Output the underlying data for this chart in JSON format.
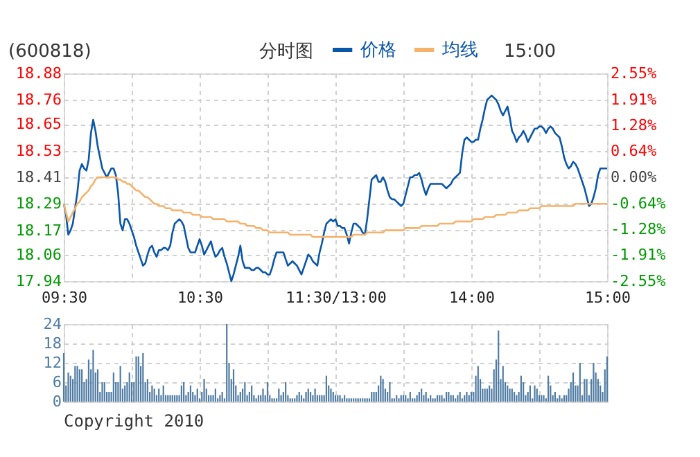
{
  "chart_data": [
    {
      "type": "line",
      "title": "(600818)",
      "subtitle": "分时图",
      "annotations": [
        "15:00"
      ],
      "legend": "top",
      "grid": true,
      "marker": "none",
      "categories": [
        "09:30",
        null,
        null,
        null,
        null,
        null,
        null,
        null,
        null,
        null,
        null,
        null,
        null,
        null,
        null,
        null,
        null,
        null,
        null,
        null,
        null,
        null,
        null,
        null,
        null,
        null,
        null,
        null,
        null,
        null,
        null,
        null,
        null,
        null,
        null,
        null,
        null,
        null,
        null,
        null,
        null,
        null,
        null,
        null,
        null,
        null,
        null,
        null,
        null,
        null,
        null,
        null,
        null,
        null,
        null,
        null,
        null,
        null,
        null,
        null,
        "10:30",
        null,
        null,
        null,
        null,
        null,
        null,
        null,
        null,
        null,
        null,
        null,
        null,
        null,
        null,
        null,
        null,
        null,
        null,
        null,
        null,
        null,
        null,
        null,
        null,
        null,
        null,
        null,
        null,
        null,
        null,
        null,
        null,
        null,
        null,
        null,
        null,
        null,
        null,
        null,
        null,
        null,
        null,
        null,
        null,
        null,
        null,
        null,
        null,
        null,
        null,
        null,
        null,
        null,
        null,
        null,
        null,
        null,
        null,
        null,
        "11:30/13:00",
        null,
        null,
        null,
        null,
        null,
        null,
        null,
        null,
        null,
        null,
        null,
        null,
        null,
        null,
        null,
        null,
        null,
        null,
        null,
        null,
        null,
        null,
        null,
        null,
        null,
        null,
        null,
        null,
        null,
        null,
        null,
        null,
        null,
        null,
        null,
        null,
        null,
        null,
        null,
        null,
        null,
        null,
        null,
        null,
        null,
        null,
        null,
        null,
        null,
        null,
        null,
        null,
        null,
        null,
        null,
        null,
        null,
        null,
        null,
        "14:00",
        null,
        null,
        null,
        null,
        null,
        null,
        null,
        null,
        null,
        null,
        null,
        null,
        null,
        null,
        null,
        null,
        null,
        null,
        null,
        null,
        null,
        null,
        null,
        null,
        null,
        null,
        null,
        null,
        null,
        null,
        null,
        null,
        null,
        null,
        null,
        null,
        null,
        null,
        null,
        null,
        null,
        null,
        null,
        null,
        null,
        null,
        null,
        null,
        null,
        null,
        null,
        null,
        null,
        null,
        null,
        null,
        null,
        null,
        null,
        "15:00"
      ],
      "ylim": [
        17.94,
        18.88
      ],
      "yticks": [
        17.94,
        18.06,
        18.17,
        18.29,
        18.41,
        18.53,
        18.65,
        18.76,
        18.88
      ],
      "y2lim": [
        -2.55,
        2.55
      ],
      "y2ticks": [
        {
          "value": -2.55,
          "label": "-2.55%"
        },
        {
          "value": -1.91,
          "label": "-1.91%"
        },
        {
          "value": -1.28,
          "label": "-1.28%"
        },
        {
          "value": -0.64,
          "label": "-0.64%"
        },
        {
          "value": 0,
          "label": "0.00%"
        },
        {
          "value": 0.64,
          "label": "0.64%"
        },
        {
          "value": 1.28,
          "label": "1.28%"
        },
        {
          "value": 1.91,
          "label": "1.91%"
        },
        {
          "value": 2.55,
          "label": "2.55%"
        }
      ],
      "series": [
        {
          "name": "价格",
          "color": "#0a56a8",
          "values": [
            18.29,
            18.24,
            18.15,
            18.17,
            18.2,
            18.27,
            18.34,
            18.44,
            18.47,
            18.45,
            18.44,
            18.49,
            18.61,
            18.67,
            18.62,
            18.55,
            18.5,
            18.45,
            18.43,
            18.41,
            18.43,
            18.45,
            18.45,
            18.42,
            18.34,
            18.2,
            18.17,
            18.22,
            18.22,
            18.2,
            18.17,
            18.14,
            18.1,
            18.07,
            18.04,
            18.01,
            18.02,
            18.06,
            18.09,
            18.1,
            18.07,
            18.05,
            18.08,
            18.08,
            18.09,
            18.09,
            18.08,
            18.1,
            18.16,
            18.2,
            18.21,
            18.22,
            18.21,
            18.19,
            18.14,
            18.09,
            18.07,
            18.07,
            18.07,
            18.1,
            18.13,
            18.1,
            18.06,
            18.08,
            18.1,
            18.12,
            18.08,
            18.05,
            18.06,
            18.08,
            18.09,
            18.05,
            18.02,
            17.98,
            17.94,
            17.97,
            18.01,
            18.05,
            18.1,
            18.03,
            18.0,
            18.0,
            18.0,
            17.99,
            17.99,
            18.0,
            18.0,
            17.99,
            17.98,
            17.98,
            17.97,
            17.97,
            18.0,
            18.04,
            18.07,
            18.07,
            18.07,
            18.07,
            18.04,
            18.01,
            18.02,
            18.03,
            18.02,
            18.01,
            17.99,
            17.97,
            18.0,
            18.03,
            18.06,
            18.05,
            18.03,
            18.02,
            18.01,
            18.07,
            18.11,
            18.16,
            18.2,
            18.21,
            18.22,
            18.21,
            18.22,
            18.19,
            18.19,
            18.18,
            18.18,
            18.15,
            18.11,
            18.16,
            18.2,
            18.2,
            18.19,
            18.18,
            18.16,
            18.15,
            18.22,
            18.31,
            18.4,
            18.41,
            18.42,
            18.39,
            18.39,
            18.41,
            18.39,
            18.35,
            18.32,
            18.31,
            18.31,
            18.3,
            18.29,
            18.28,
            18.29,
            18.33,
            18.37,
            18.41,
            18.41,
            18.42,
            18.42,
            18.43,
            18.4,
            18.36,
            18.33,
            18.36,
            18.38,
            18.38,
            18.38,
            18.38,
            18.38,
            18.38,
            18.37,
            18.36,
            18.37,
            18.38,
            18.4,
            18.41,
            18.42,
            18.43,
            18.52,
            18.58,
            18.59,
            18.58,
            18.57,
            18.57,
            18.58,
            18.58,
            18.63,
            18.67,
            18.72,
            18.76,
            18.77,
            18.78,
            18.77,
            18.76,
            18.74,
            18.71,
            18.69,
            18.71,
            18.73,
            18.68,
            18.62,
            18.6,
            18.57,
            18.59,
            18.6,
            18.62,
            18.6,
            18.57,
            18.59,
            18.61,
            18.63,
            18.63,
            18.64,
            18.64,
            18.63,
            18.61,
            18.63,
            18.64,
            18.63,
            18.61,
            18.6,
            18.59,
            18.55,
            18.5,
            18.47,
            18.45,
            18.46,
            18.48,
            18.47,
            18.45,
            18.42,
            18.39,
            18.36,
            18.32,
            18.28,
            18.29,
            18.32,
            18.36,
            18.42,
            18.45,
            18.45,
            18.45,
            18.45
          ]
        },
        {
          "name": "均线",
          "color": "#f5b26b",
          "values": [
            18.29,
            18.25,
            18.21,
            18.23,
            18.25,
            18.27,
            18.29,
            18.3,
            18.32,
            18.33,
            18.34,
            18.35,
            18.37,
            18.38,
            18.4,
            18.41,
            18.41,
            18.41,
            18.41,
            18.41,
            18.41,
            18.41,
            18.41,
            18.41,
            18.4,
            18.4,
            18.39,
            18.39,
            18.38,
            18.38,
            18.37,
            18.36,
            18.35,
            18.35,
            18.34,
            18.33,
            18.32,
            18.32,
            18.31,
            18.3,
            18.29,
            18.29,
            18.28,
            18.28,
            18.28,
            18.27,
            18.27,
            18.27,
            18.26,
            18.26,
            18.26,
            18.26,
            18.26,
            18.25,
            18.25,
            18.25,
            18.25,
            18.24,
            18.24,
            18.24,
            18.24,
            18.23,
            18.23,
            18.23,
            18.23,
            18.23,
            18.22,
            18.22,
            18.22,
            18.22,
            18.22,
            18.22,
            18.21,
            18.21,
            18.21,
            18.21,
            18.21,
            18.21,
            18.2,
            18.2,
            18.2,
            18.19,
            18.19,
            18.19,
            18.19,
            18.18,
            18.18,
            18.18,
            18.17,
            18.17,
            18.17,
            18.16,
            18.16,
            18.16,
            18.16,
            18.16,
            18.16,
            18.16,
            18.16,
            18.16,
            18.15,
            18.15,
            18.15,
            18.15,
            18.15,
            18.15,
            18.15,
            18.15,
            18.15,
            18.15,
            18.14,
            18.14,
            18.14,
            18.14,
            18.14,
            18.14,
            18.14,
            18.14,
            18.14,
            18.14,
            18.14,
            18.14,
            18.14,
            18.14,
            18.14,
            18.14,
            18.14,
            18.14,
            18.15,
            18.15,
            18.15,
            18.15,
            18.15,
            18.15,
            18.16,
            18.16,
            18.16,
            18.16,
            18.16,
            18.16,
            18.16,
            18.16,
            18.17,
            18.17,
            18.17,
            18.17,
            18.17,
            18.17,
            18.17,
            18.17,
            18.17,
            18.18,
            18.18,
            18.18,
            18.18,
            18.18,
            18.18,
            18.18,
            18.19,
            18.19,
            18.19,
            18.19,
            18.19,
            18.19,
            18.19,
            18.19,
            18.2,
            18.2,
            18.2,
            18.2,
            18.2,
            18.2,
            18.2,
            18.21,
            18.21,
            18.21,
            18.21,
            18.21,
            18.21,
            18.21,
            18.21,
            18.22,
            18.22,
            18.22,
            18.22,
            18.22,
            18.23,
            18.23,
            18.23,
            18.23,
            18.23,
            18.24,
            18.24,
            18.24,
            18.24,
            18.24,
            18.25,
            18.25,
            18.25,
            18.25,
            18.25,
            18.26,
            18.26,
            18.26,
            18.26,
            18.26,
            18.27,
            18.27,
            18.27,
            18.27,
            18.27,
            18.28,
            18.28,
            18.28,
            18.28,
            18.28,
            18.28,
            18.28,
            18.28,
            18.28,
            18.28,
            18.28,
            18.28,
            18.28,
            18.28,
            18.28,
            18.29,
            18.29,
            18.29,
            18.29,
            18.29,
            18.29,
            18.29,
            18.29,
            18.29,
            18.29,
            18.29,
            18.29,
            18.29,
            18.29,
            18.29
          ]
        }
      ]
    },
    {
      "type": "bar",
      "color": "#4f7ba3",
      "tick_labels": "y",
      "grid": true,
      "annotations": [
        "Copyright 2010"
      ],
      "ylim": [
        0,
        24
      ],
      "yticks": [
        0,
        6,
        12,
        18,
        24
      ],
      "categories": [
        null,
        null,
        null,
        null,
        null,
        null,
        null,
        null,
        null,
        null,
        null,
        null,
        null,
        null,
        null,
        null,
        null,
        null,
        null,
        null,
        null,
        null,
        null,
        null,
        null,
        null,
        null,
        null,
        null,
        null,
        null,
        null,
        null,
        null,
        null,
        null,
        null,
        null,
        null,
        null,
        null,
        null,
        null,
        null,
        null,
        null,
        null,
        null,
        null,
        null,
        null,
        null,
        null,
        null,
        null,
        null,
        null,
        null,
        null,
        null,
        null,
        null,
        null,
        null,
        null,
        null,
        null,
        null,
        null,
        null,
        null,
        null,
        null,
        null,
        null,
        null,
        null,
        null,
        null,
        null,
        null,
        null,
        null,
        null,
        null,
        null,
        null,
        null,
        null,
        null,
        null,
        null,
        null,
        null,
        null,
        null,
        null,
        null,
        null,
        null,
        null,
        null,
        null,
        null,
        null,
        null,
        null,
        null,
        null,
        null,
        null,
        null,
        null,
        null,
        null,
        null,
        null,
        null,
        null,
        null,
        null,
        null,
        null,
        null,
        null,
        null,
        null,
        null,
        null,
        null,
        null,
        null,
        null,
        null,
        null,
        null,
        null,
        null,
        null,
        null,
        null,
        null,
        null,
        null,
        null,
        null,
        null,
        null,
        null,
        null,
        null,
        null,
        null,
        null,
        null,
        null,
        null,
        null,
        null,
        null,
        null,
        null,
        null,
        null,
        null,
        null,
        null,
        null,
        null,
        null,
        null,
        null,
        null,
        null,
        null,
        null,
        null,
        null,
        null,
        null,
        null,
        null,
        null,
        null,
        null,
        null,
        null,
        null,
        null,
        null,
        null,
        null,
        null,
        null,
        null,
        null,
        null,
        null,
        null,
        null,
        null,
        null,
        null,
        null,
        null,
        null,
        null,
        null,
        null,
        null,
        null,
        null,
        null,
        null,
        null,
        null,
        null,
        null,
        null,
        null,
        null,
        null,
        null,
        null,
        null,
        null,
        null,
        null,
        null,
        null,
        null,
        null,
        null,
        null,
        null,
        null,
        null,
        null,
        null,
        null,
        null
      ],
      "values": [
        15,
        5,
        9,
        8,
        7,
        11,
        11,
        10,
        10,
        6,
        7,
        13,
        10,
        16,
        9,
        10,
        3,
        6,
        6,
        3,
        3,
        3,
        9,
        6,
        6,
        11,
        4,
        5,
        6,
        9,
        6,
        6,
        14,
        14,
        11,
        15,
        6,
        7,
        3,
        5,
        4,
        2,
        4,
        2,
        5,
        2,
        2,
        2,
        2,
        2,
        2,
        2,
        5,
        6,
        2,
        3,
        5,
        3,
        2,
        4,
        1,
        3,
        7,
        4,
        2,
        2,
        2,
        4,
        1,
        2,
        3,
        1,
        24,
        12,
        7,
        10,
        5,
        2,
        3,
        4,
        6,
        2,
        3,
        5,
        2,
        1,
        2,
        2,
        4,
        2,
        6,
        2,
        1,
        1,
        1,
        4,
        2,
        3,
        6,
        2,
        1,
        1,
        1,
        2,
        3,
        2,
        1,
        3,
        4,
        3,
        2,
        4,
        2,
        2,
        2,
        2,
        8,
        5,
        4,
        3,
        2,
        2,
        2,
        1,
        2,
        1,
        1,
        1,
        1,
        1,
        1,
        1,
        1,
        1,
        1,
        1,
        3,
        3,
        3,
        5,
        8,
        7,
        4,
        3,
        6,
        1,
        1,
        2,
        1,
        2,
        2,
        2,
        1,
        3,
        1,
        1,
        2,
        3,
        4,
        2,
        3,
        1,
        2,
        1,
        1,
        2,
        2,
        2,
        1,
        3,
        3,
        2,
        2,
        1,
        2,
        3,
        1,
        2,
        3,
        2,
        3,
        3,
        8,
        11,
        7,
        4,
        4,
        4,
        5,
        4,
        10,
        13,
        22,
        7,
        11,
        6,
        5,
        4,
        4,
        3,
        2,
        3,
        8,
        6,
        2,
        3,
        5,
        1,
        5,
        4,
        2,
        2,
        2,
        1,
        8,
        5,
        2,
        3,
        1,
        2,
        1,
        2,
        2,
        4,
        6,
        9,
        5,
        5,
        12,
        2,
        7,
        7,
        2,
        7,
        12,
        9,
        7,
        5,
        3,
        10,
        14
      ]
    }
  ]
}
